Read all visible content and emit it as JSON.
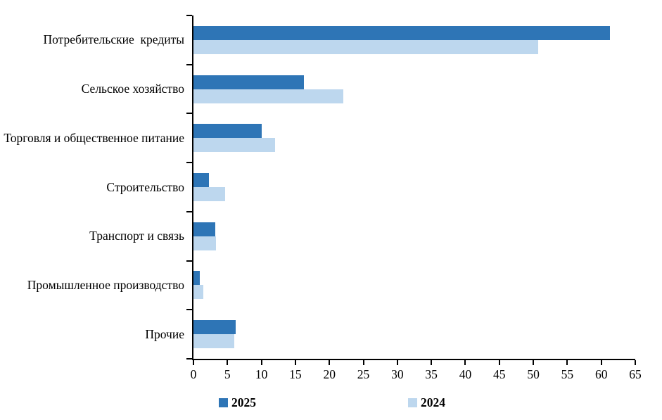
{
  "chart_data": {
    "type": "bar",
    "orientation": "horizontal",
    "title": "",
    "xlabel": "",
    "ylabel": "",
    "grid": false,
    "legend_position": "bottom",
    "xlim": [
      0,
      65
    ],
    "x_ticks": [
      0,
      5,
      10,
      15,
      20,
      25,
      30,
      35,
      40,
      45,
      50,
      55,
      60,
      65
    ],
    "categories": [
      "Потребительские  кредиты",
      "Сельское хозяйство",
      "Торговля и общественное питание",
      "Строительство",
      "Транспорт и связь",
      "Промышленное производство",
      "Прочие"
    ],
    "series": [
      {
        "name": "2025",
        "color": "#2E75B6",
        "values": [
          61.3,
          16.3,
          10.0,
          2.3,
          3.2,
          0.9,
          6.2
        ]
      },
      {
        "name": "2024",
        "color": "#BDD7EE",
        "values": [
          50.7,
          22.0,
          12.0,
          4.7,
          3.3,
          1.4,
          6.0
        ]
      }
    ]
  },
  "colors": {
    "background": "#FFFFFF",
    "axis": "#000000",
    "text": "#000000",
    "series_2025": "#2E75B6",
    "series_2024": "#BDD7EE"
  }
}
